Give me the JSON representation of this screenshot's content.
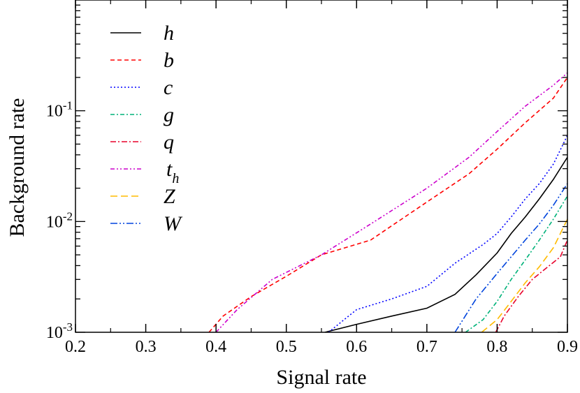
{
  "chart_data": {
    "type": "line",
    "xlabel": "Signal rate",
    "ylabel": "Background rate",
    "xlim": [
      0.2,
      0.9
    ],
    "ylim": [
      0.001,
      1
    ],
    "yscale": "log",
    "grid": false,
    "legend_position": "top-left",
    "x_ticks": [
      "0.2",
      "0.3",
      "0.4",
      "0.5",
      "0.6",
      "0.7",
      "0.8",
      "0.9"
    ],
    "y_ticks": [
      {
        "base": "10",
        "exp": "-3"
      },
      {
        "base": "10",
        "exp": "-2"
      },
      {
        "base": "10",
        "exp": "-1"
      }
    ],
    "series": [
      {
        "name": "h",
        "sub": "",
        "color": "#000000",
        "dash": "",
        "x": [
          0.555,
          0.6,
          0.65,
          0.7,
          0.74,
          0.77,
          0.8,
          0.82,
          0.84,
          0.86,
          0.88,
          0.9
        ],
        "y": [
          0.001,
          0.00118,
          0.0014,
          0.00165,
          0.0022,
          0.0033,
          0.0052,
          0.0078,
          0.011,
          0.016,
          0.024,
          0.038
        ]
      },
      {
        "name": "b",
        "sub": "",
        "color": "#ff0000",
        "dash": "6,4",
        "x": [
          0.39,
          0.41,
          0.45,
          0.5,
          0.55,
          0.62,
          0.7,
          0.76,
          0.8,
          0.84,
          0.88,
          0.9
        ],
        "y": [
          0.001,
          0.0014,
          0.0021,
          0.0032,
          0.005,
          0.0068,
          0.015,
          0.027,
          0.045,
          0.078,
          0.13,
          0.2
        ]
      },
      {
        "name": "c",
        "sub": "",
        "color": "#0000ff",
        "dash": "2,3",
        "x": [
          0.56,
          0.6,
          0.65,
          0.7,
          0.74,
          0.78,
          0.8,
          0.82,
          0.84,
          0.86,
          0.88,
          0.9
        ],
        "y": [
          0.001,
          0.0016,
          0.002,
          0.0026,
          0.0042,
          0.0062,
          0.0078,
          0.011,
          0.016,
          0.022,
          0.033,
          0.06
        ]
      },
      {
        "name": "g",
        "sub": "",
        "color": "#00b279",
        "dash": "6,3,2,3",
        "x": [
          0.755,
          0.78,
          0.8,
          0.82,
          0.84,
          0.86,
          0.88,
          0.9
        ],
        "y": [
          0.001,
          0.0013,
          0.0019,
          0.003,
          0.0045,
          0.0068,
          0.0105,
          0.017
        ]
      },
      {
        "name": "q",
        "sub": "",
        "color": "#e8002a",
        "dash": "8,3,2,3",
        "x": [
          0.798,
          0.81,
          0.83,
          0.85,
          0.87,
          0.89,
          0.9
        ],
        "y": [
          0.001,
          0.0014,
          0.0021,
          0.003,
          0.0038,
          0.0048,
          0.0068
        ]
      },
      {
        "name": "t",
        "sub": "h",
        "color": "#cc00cc",
        "dash": "6,3,2,3,2,3",
        "x": [
          0.4,
          0.43,
          0.48,
          0.55,
          0.62,
          0.7,
          0.76,
          0.8,
          0.84,
          0.88,
          0.9
        ],
        "y": [
          0.001,
          0.0016,
          0.003,
          0.005,
          0.0095,
          0.02,
          0.038,
          0.065,
          0.11,
          0.17,
          0.22
        ]
      },
      {
        "name": "Z",
        "sub": "",
        "color": "#ffbb00",
        "dash": "10,5",
        "x": [
          0.778,
          0.8,
          0.82,
          0.84,
          0.86,
          0.88,
          0.9
        ],
        "y": [
          0.001,
          0.0013,
          0.0019,
          0.0028,
          0.0039,
          0.0058,
          0.0105
        ]
      },
      {
        "name": "W",
        "sub": "",
        "color": "#0044dd",
        "dash": "10,3,2,3,2,3",
        "x": [
          0.74,
          0.77,
          0.8,
          0.82,
          0.84,
          0.86,
          0.88,
          0.9
        ],
        "y": [
          0.001,
          0.002,
          0.0034,
          0.0048,
          0.0068,
          0.0095,
          0.014,
          0.022
        ]
      }
    ]
  }
}
